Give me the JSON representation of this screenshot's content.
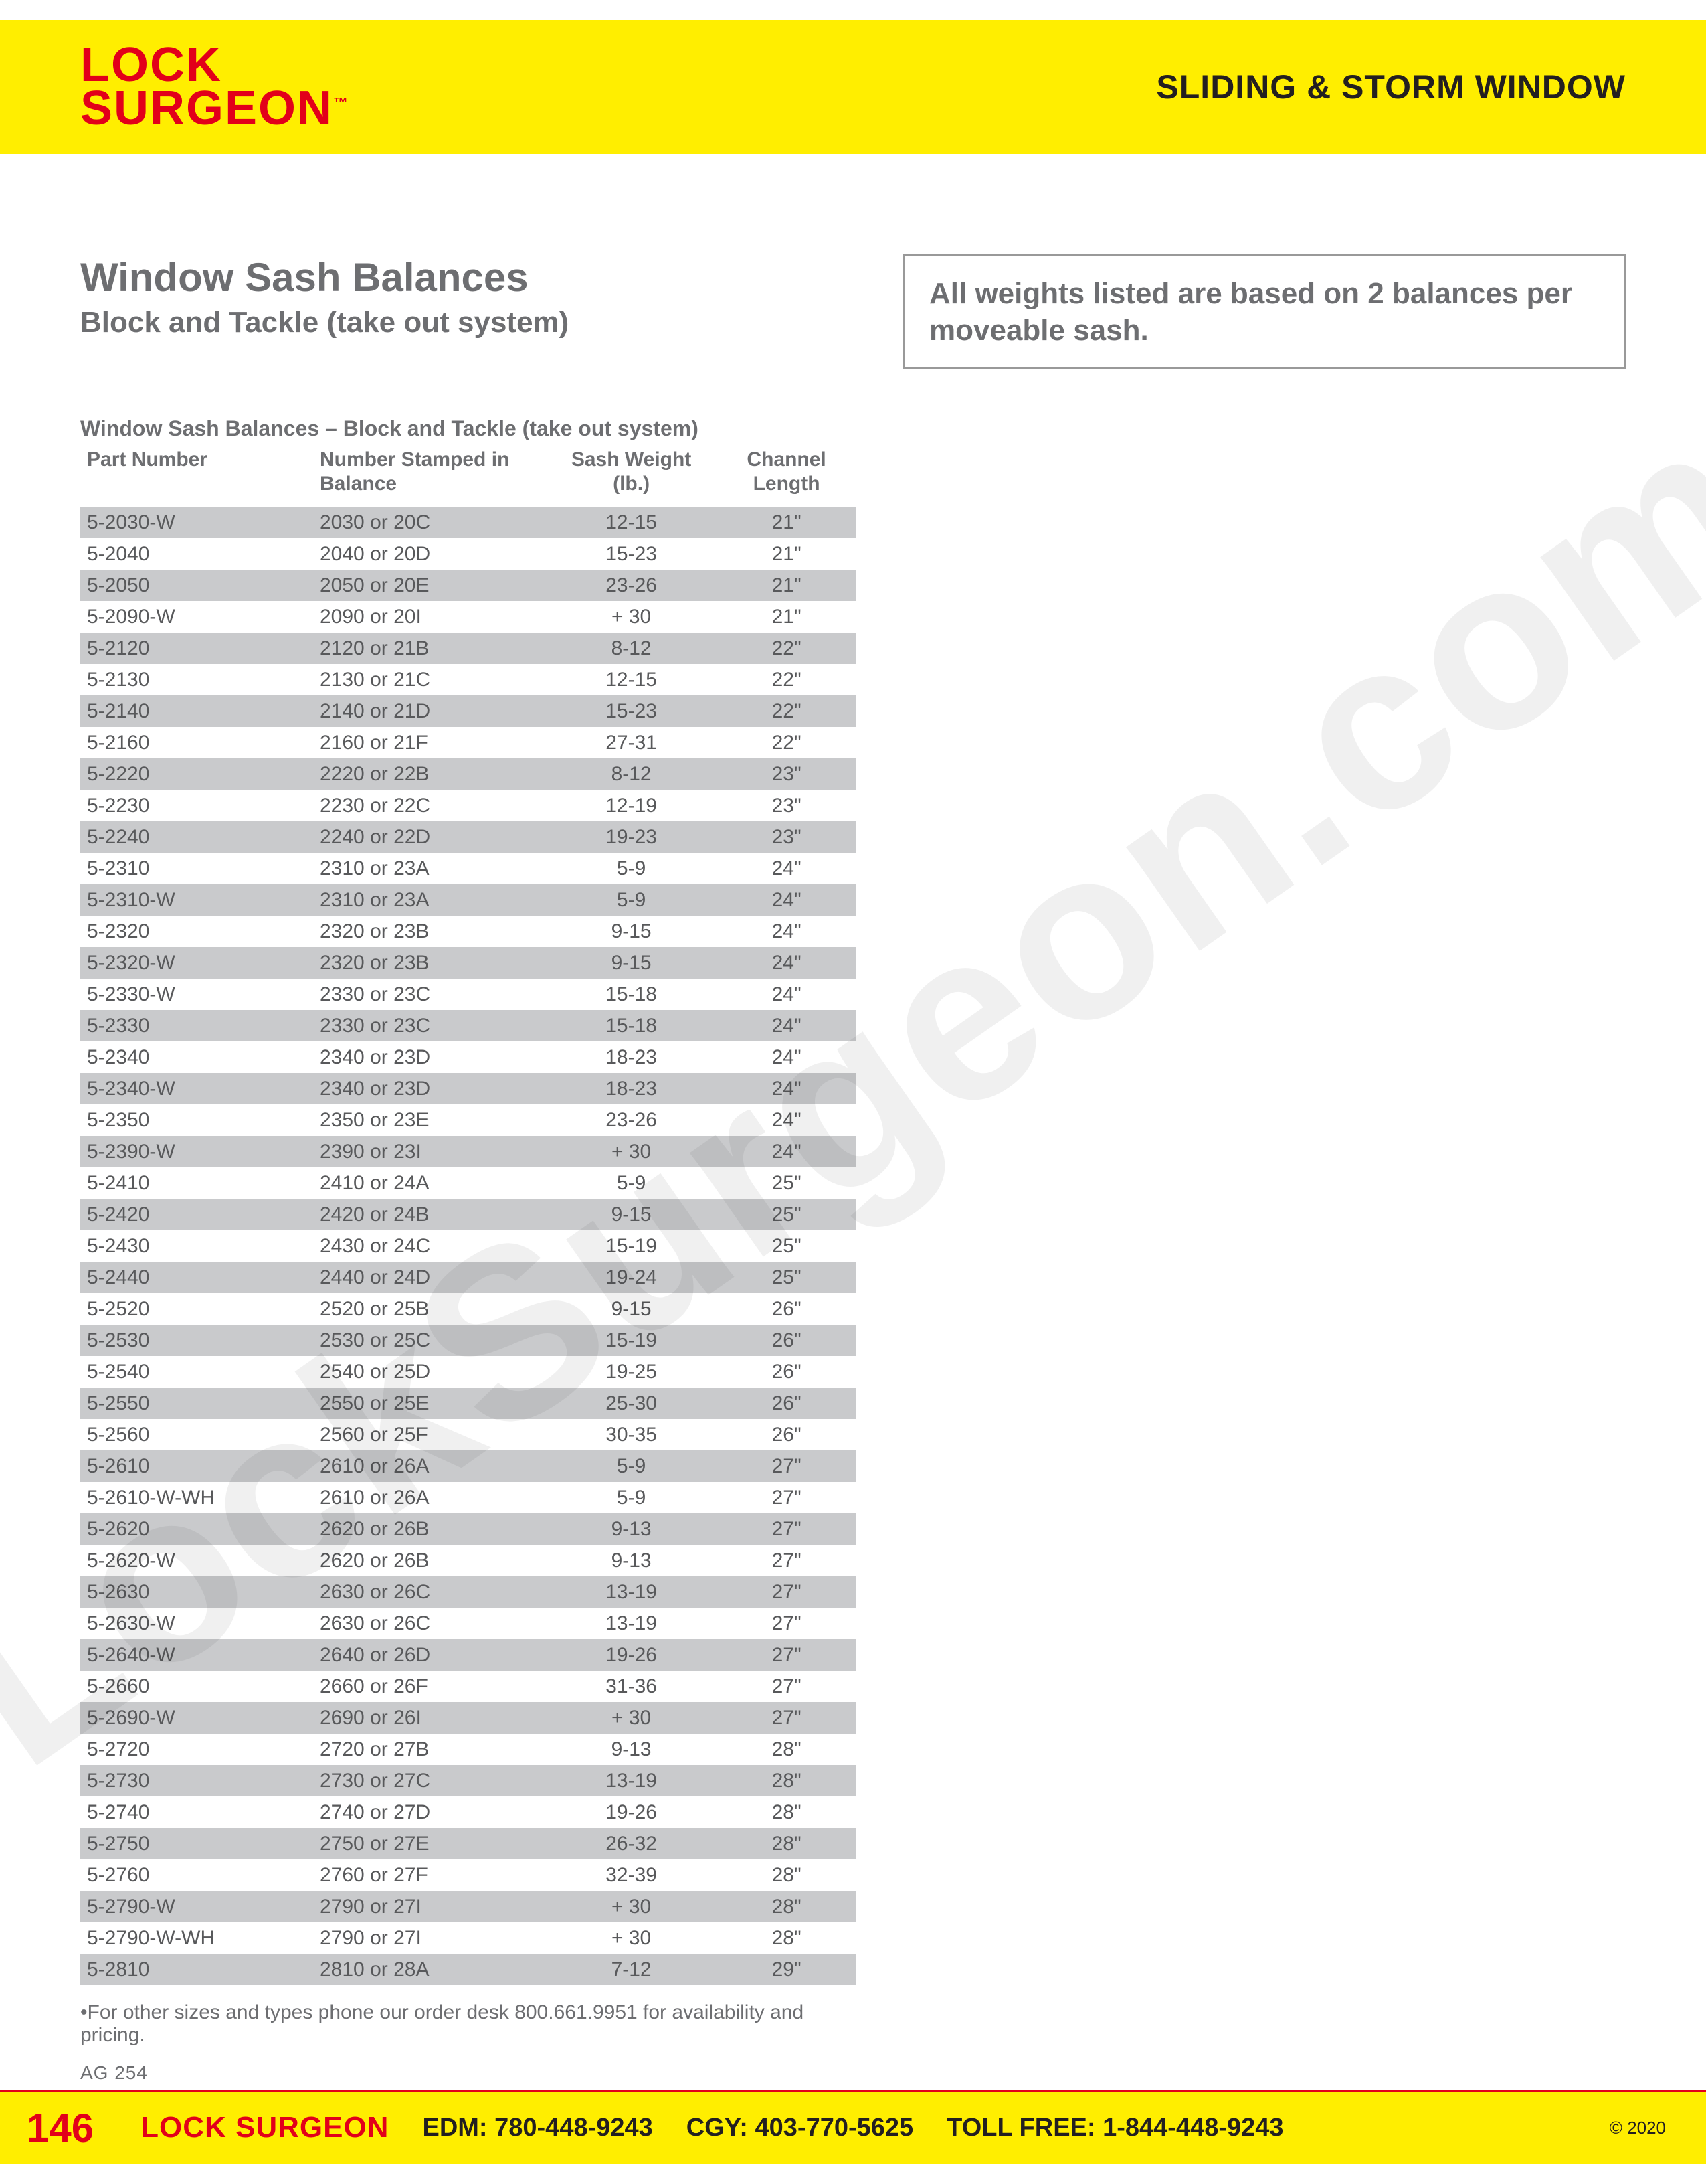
{
  "watermark": "LockSurgeon.com",
  "header": {
    "logo_line1": "LOCK",
    "logo_line2": "SURGEON",
    "logo_tm": "™",
    "section": "SLIDING & STORM WINDOW"
  },
  "title": {
    "main": "Window Sash Balances",
    "sub": "Block and Tackle (take out system)"
  },
  "note": "All weights listed are based on 2 balances per moveable sash.",
  "table": {
    "caption": "Window Sash Balances – Block and Tackle (take out system)",
    "columns": [
      "Part Number",
      "Number Stamped in Balance",
      "Sash Weight (lb.)",
      "Channel Length"
    ],
    "footnote": "•For other sizes and types phone our order desk 800.661.9951 for availability and pricing.",
    "row_alt_color": "#c9cacc",
    "text_color": "#58595b",
    "font_size_pt": 22,
    "rows": [
      {
        "alt": true,
        "cells": [
          "5-2030-W",
          "2030 or 20C",
          "12-15",
          "21\""
        ]
      },
      {
        "alt": false,
        "cells": [
          "5-2040",
          "2040 or 20D",
          "15-23",
          "21\""
        ]
      },
      {
        "alt": true,
        "cells": [
          "5-2050",
          "2050 or 20E",
          "23-26",
          "21\""
        ]
      },
      {
        "alt": false,
        "cells": [
          "5-2090-W",
          "2090 or 20I",
          "+ 30",
          "21\""
        ]
      },
      {
        "alt": true,
        "cells": [
          "5-2120",
          "2120 or 21B",
          "8-12",
          "22\""
        ]
      },
      {
        "alt": false,
        "cells": [
          "5-2130",
          "2130 or 21C",
          "12-15",
          "22\""
        ]
      },
      {
        "alt": true,
        "cells": [
          "5-2140",
          "2140 or 21D",
          "15-23",
          "22\""
        ]
      },
      {
        "alt": false,
        "cells": [
          "5-2160",
          "2160 or 21F",
          "27-31",
          "22\""
        ]
      },
      {
        "alt": true,
        "cells": [
          "5-2220",
          "2220 or 22B",
          "8-12",
          "23\""
        ]
      },
      {
        "alt": false,
        "cells": [
          "5-2230",
          "2230 or 22C",
          "12-19",
          "23\""
        ]
      },
      {
        "alt": true,
        "cells": [
          "5-2240",
          "2240 or 22D",
          "19-23",
          "23\""
        ]
      },
      {
        "alt": false,
        "cells": [
          "5-2310",
          "2310 or 23A",
          "5-9",
          "24\""
        ]
      },
      {
        "alt": true,
        "cells": [
          "5-2310-W",
          "2310 or 23A",
          "5-9",
          "24\""
        ]
      },
      {
        "alt": false,
        "cells": [
          "5-2320",
          "2320 or 23B",
          "9-15",
          "24\""
        ]
      },
      {
        "alt": true,
        "cells": [
          "5-2320-W",
          "2320 or 23B",
          "9-15",
          "24\""
        ]
      },
      {
        "alt": false,
        "cells": [
          "5-2330-W",
          "2330 or 23C",
          "15-18",
          "24\""
        ]
      },
      {
        "alt": true,
        "cells": [
          "5-2330",
          "2330 or 23C",
          "15-18",
          "24\""
        ]
      },
      {
        "alt": false,
        "cells": [
          "5-2340",
          "2340 or 23D",
          "18-23",
          "24\""
        ]
      },
      {
        "alt": true,
        "cells": [
          "5-2340-W",
          "2340 or 23D",
          "18-23",
          "24\""
        ]
      },
      {
        "alt": false,
        "cells": [
          "5-2350",
          "2350 or 23E",
          "23-26",
          "24\""
        ]
      },
      {
        "alt": true,
        "cells": [
          "5-2390-W",
          "2390 or 23I",
          "+ 30",
          "24\""
        ]
      },
      {
        "alt": false,
        "cells": [
          "5-2410",
          "2410 or 24A",
          "5-9",
          "25\""
        ]
      },
      {
        "alt": true,
        "cells": [
          "5-2420",
          "2420 or 24B",
          "9-15",
          "25\""
        ]
      },
      {
        "alt": false,
        "cells": [
          "5-2430",
          "2430 or 24C",
          "15-19",
          "25\""
        ]
      },
      {
        "alt": true,
        "cells": [
          "5-2440",
          "2440 or 24D",
          "19-24",
          "25\""
        ]
      },
      {
        "alt": false,
        "cells": [
          "5-2520",
          "2520 or 25B",
          "9-15",
          "26\""
        ]
      },
      {
        "alt": true,
        "cells": [
          "5-2530",
          "2530 or 25C",
          "15-19",
          "26\""
        ]
      },
      {
        "alt": false,
        "cells": [
          "5-2540",
          "2540 or 25D",
          "19-25",
          "26\""
        ]
      },
      {
        "alt": true,
        "cells": [
          "5-2550",
          "2550 or 25E",
          "25-30",
          "26\""
        ]
      },
      {
        "alt": false,
        "cells": [
          "5-2560",
          "2560 or 25F",
          "30-35",
          "26\""
        ]
      },
      {
        "alt": true,
        "cells": [
          "5-2610",
          "2610 or 26A",
          "5-9",
          "27\""
        ]
      },
      {
        "alt": false,
        "cells": [
          "5-2610-W-WH",
          "2610 or 26A",
          "5-9",
          "27\""
        ]
      },
      {
        "alt": true,
        "cells": [
          "5-2620",
          "2620 or 26B",
          "9-13",
          "27\""
        ]
      },
      {
        "alt": false,
        "cells": [
          "5-2620-W",
          "2620 or 26B",
          "9-13",
          "27\""
        ]
      },
      {
        "alt": true,
        "cells": [
          "5-2630",
          "2630 or 26C",
          "13-19",
          "27\""
        ]
      },
      {
        "alt": false,
        "cells": [
          "5-2630-W",
          "2630 or 26C",
          "13-19",
          "27\""
        ]
      },
      {
        "alt": true,
        "cells": [
          "5-2640-W",
          "2640 or 26D",
          "19-26",
          "27\""
        ]
      },
      {
        "alt": false,
        "cells": [
          "5-2660",
          "2660 or 26F",
          "31-36",
          "27\""
        ]
      },
      {
        "alt": true,
        "cells": [
          "5-2690-W",
          "2690 or 26I",
          "+ 30",
          "27\""
        ]
      },
      {
        "alt": false,
        "cells": [
          "5-2720",
          "2720 or 27B",
          "9-13",
          "28\""
        ]
      },
      {
        "alt": true,
        "cells": [
          "5-2730",
          "2730 or 27C",
          "13-19",
          "28\""
        ]
      },
      {
        "alt": false,
        "cells": [
          "5-2740",
          "2740 or 27D",
          "19-26",
          "28\""
        ]
      },
      {
        "alt": true,
        "cells": [
          "5-2750",
          "2750 or 27E",
          "26-32",
          "28\""
        ]
      },
      {
        "alt": false,
        "cells": [
          "5-2760",
          "2760 or 27F",
          "32-39",
          "28\""
        ]
      },
      {
        "alt": true,
        "cells": [
          "5-2790-W",
          "2790 or 27I",
          "+ 30",
          "28\""
        ]
      },
      {
        "alt": false,
        "cells": [
          "5-2790-W-WH",
          "2790 or 27I",
          "+ 30",
          "28\""
        ]
      },
      {
        "alt": true,
        "cells": [
          "5-2810",
          "2810 or 28A",
          "7-12",
          "29\""
        ]
      }
    ]
  },
  "ag_code": "AG 254",
  "footer": {
    "page": "146",
    "brand": "LOCK SURGEON",
    "edm": "EDM: 780-448-9243",
    "cgy": "CGY: 403-770-5625",
    "tollfree": "TOLL FREE: 1-844-448-9243",
    "copyright": "© 2020"
  },
  "colors": {
    "yellow": "#ffee00",
    "red": "#e2001a",
    "grey_text": "#6d6e71",
    "row_alt": "#c9cacc",
    "black": "#231f20"
  }
}
